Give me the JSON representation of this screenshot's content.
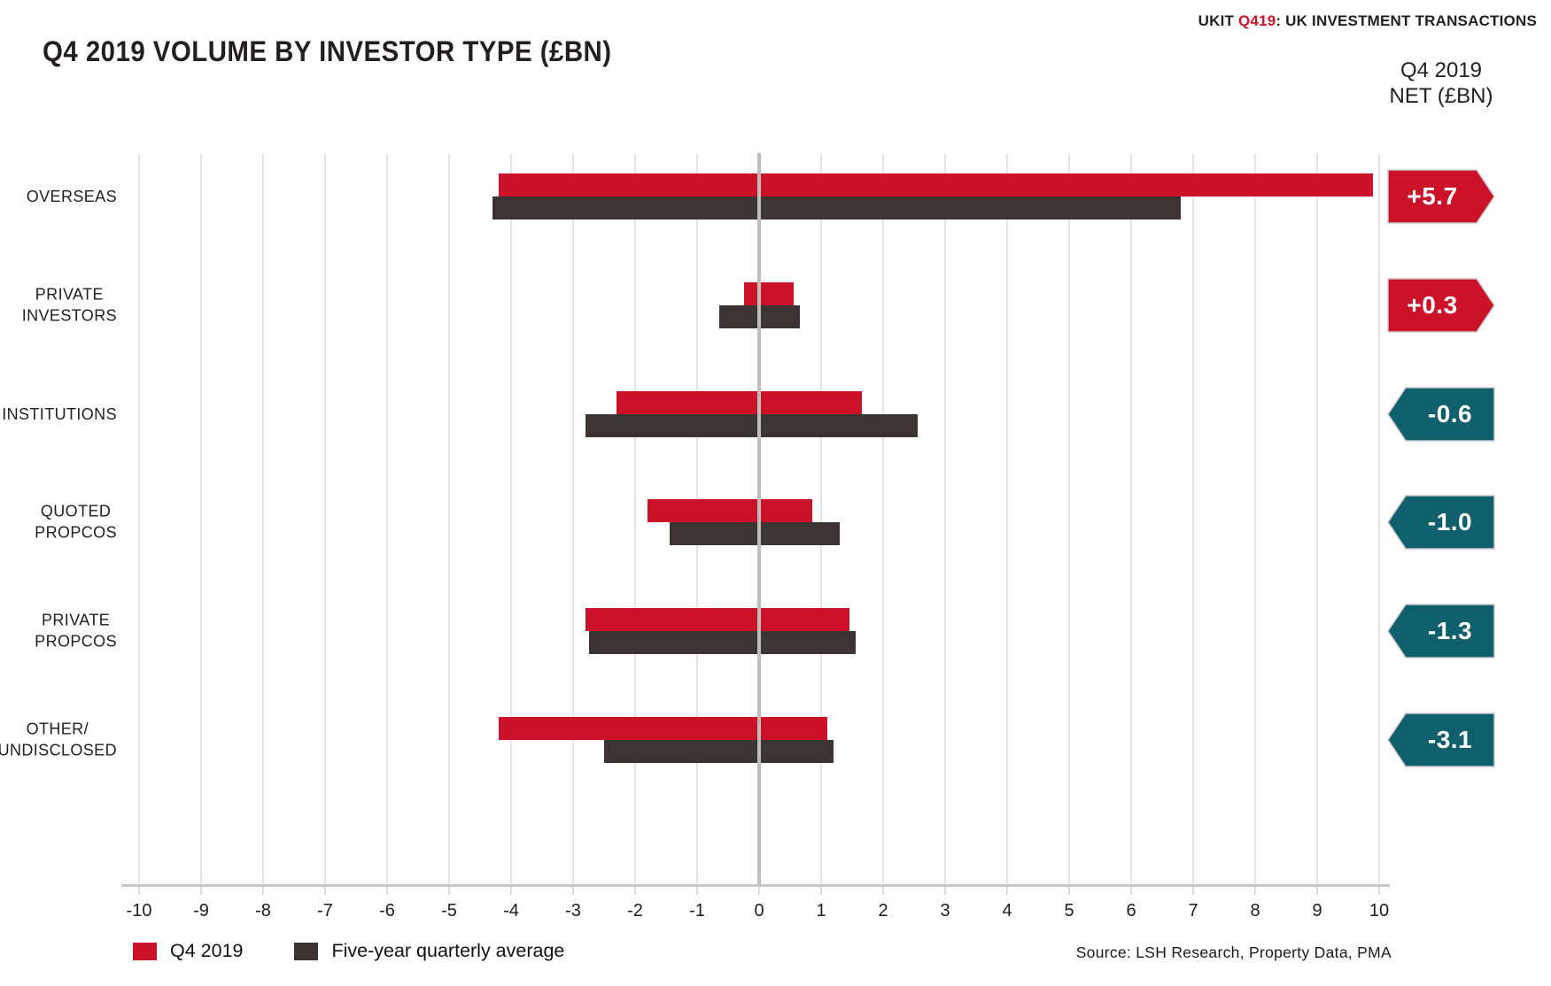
{
  "header": {
    "kicker_prefix": "UKIT ",
    "kicker_code": "Q419",
    "kicker_suffix": ": UK INVESTMENT TRANSACTIONS",
    "title": "Q4 2019 VOLUME BY INVESTOR TYPE (£BN)"
  },
  "net_column": {
    "header_line1": "Q4 2019",
    "header_line2": "NET (£BN)"
  },
  "legend": {
    "items": [
      {
        "label": "Q4 2019",
        "color": "#CC1228"
      },
      {
        "label": "Five-year quarterly average",
        "color": "#3B3432"
      }
    ]
  },
  "footer": {
    "source": "Source: LSH Research, Property Data, PMA"
  },
  "colors": {
    "red": "#CC1228",
    "dark": "#3B3432",
    "teal": "#0F5F6C",
    "badge_stroke": "#C9C9C9",
    "grid": "#E4E4E4",
    "zero_line": "#BDBDBD",
    "axis": "#C8C8C8"
  },
  "chart_data": {
    "type": "bar",
    "variant": "horizontal-diverging-range",
    "title": "Q4 2019 VOLUME BY INVESTOR TYPE (£BN)",
    "xlim": [
      -10,
      10
    ],
    "x_ticks": [
      -10,
      -9,
      -8,
      -7,
      -6,
      -5,
      -4,
      -3,
      -2,
      -1,
      0,
      1,
      2,
      3,
      4,
      5,
      6,
      7,
      8,
      9,
      10
    ],
    "grid": true,
    "legend_position": "bottom-left",
    "categories": [
      "OVERSEAS",
      "PRIVATE INVESTORS",
      "INSTITUTIONS",
      "QUOTED PROPCOS",
      "PRIVATE PROPCOS",
      "OTHER/UNDISCLOSED"
    ],
    "category_lines": [
      [
        "OVERSEAS"
      ],
      [
        "PRIVATE",
        "INVESTORS"
      ],
      [
        "INSTITUTIONS"
      ],
      [
        "QUOTED",
        "PROPCOS"
      ],
      [
        "PRIVATE",
        "PROPCOS"
      ],
      [
        "OTHER/",
        "UNDISCLOSED"
      ]
    ],
    "series": [
      {
        "name": "Q4 2019",
        "color_key": "red",
        "ranges": [
          [
            -4.2,
            9.9
          ],
          [
            -0.25,
            0.55
          ],
          [
            -2.3,
            1.65
          ],
          [
            -1.8,
            0.85
          ],
          [
            -2.8,
            1.45
          ],
          [
            -4.2,
            1.1
          ]
        ]
      },
      {
        "name": "Five-year quarterly average",
        "color_key": "dark",
        "ranges": [
          [
            -4.3,
            6.8
          ],
          [
            -0.65,
            0.65
          ],
          [
            -2.8,
            2.55
          ],
          [
            -1.45,
            1.3
          ],
          [
            -2.75,
            1.55
          ],
          [
            -2.5,
            1.2
          ]
        ]
      }
    ],
    "net_values": [
      {
        "label": "+5.7",
        "direction": "positive"
      },
      {
        "label": "+0.3",
        "direction": "positive"
      },
      {
        "label": "-0.6",
        "direction": "negative"
      },
      {
        "label": "-1.0",
        "direction": "negative"
      },
      {
        "label": "-1.3",
        "direction": "negative"
      },
      {
        "label": "-3.1",
        "direction": "negative"
      }
    ]
  }
}
